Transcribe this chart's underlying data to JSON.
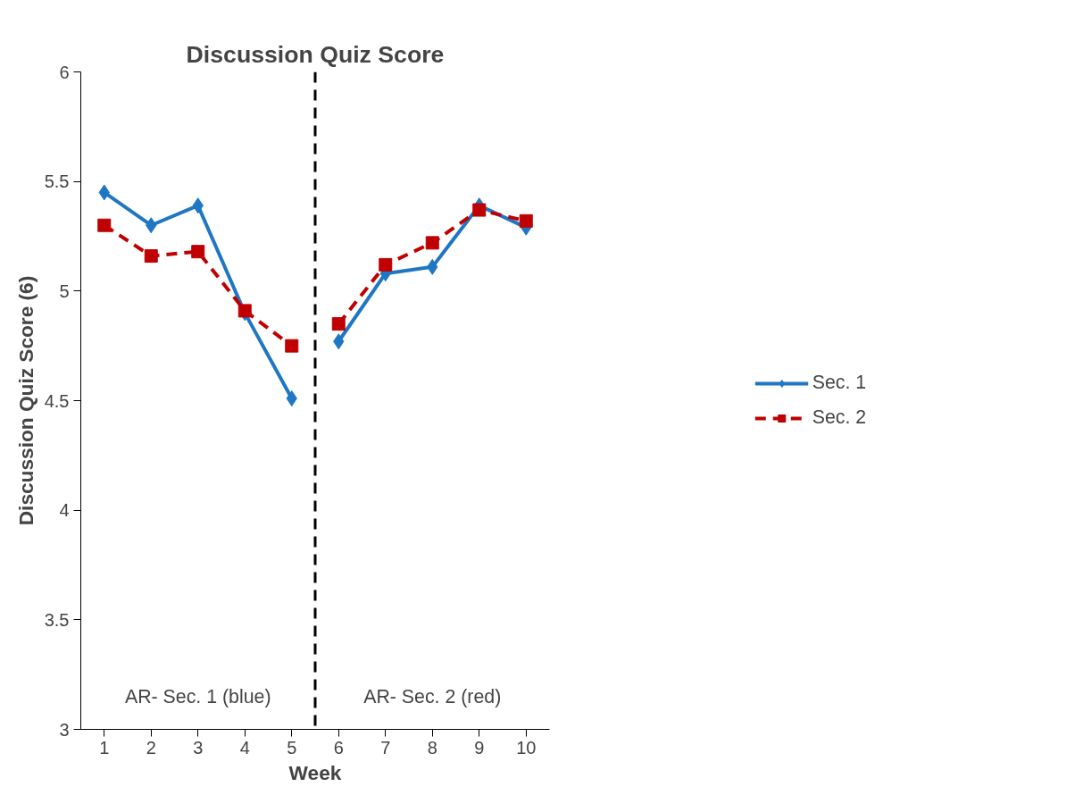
{
  "chart_data": {
    "type": "line",
    "title": "Discussion Quiz Score",
    "xlabel": "Week",
    "ylabel": "Discussion Quiz Score (6)",
    "x": [
      1,
      2,
      3,
      4,
      5,
      6,
      7,
      8,
      9,
      10
    ],
    "xlim": [
      0.5,
      10.5
    ],
    "xticks": [
      1,
      2,
      3,
      4,
      5,
      6,
      7,
      8,
      9,
      10
    ],
    "ylim": [
      3,
      6
    ],
    "yticks": [
      3,
      3.5,
      4,
      4.5,
      5,
      5.5,
      6
    ],
    "grid": false,
    "legend": "right",
    "series": [
      {
        "name": "Sec. 1",
        "color": "#1f77c4",
        "marker": "diamond",
        "line_style": "solid",
        "values": [
          5.45,
          5.3,
          5.39,
          4.9,
          4.51,
          4.77,
          5.08,
          5.11,
          5.39,
          5.29
        ]
      },
      {
        "name": "Sec. 2",
        "color": "#c00000",
        "marker": "square",
        "line_style": "dashed",
        "values": [
          5.3,
          5.16,
          5.18,
          4.91,
          4.75,
          4.85,
          5.12,
          5.22,
          5.37,
          5.32
        ]
      }
    ],
    "ref_lines": [
      {
        "axis": "x",
        "value": 5.5,
        "color": "#000000",
        "line_style": "dashed"
      }
    ],
    "annotations": [
      "AR- Sec. 1 (blue)",
      "AR- Sec. 2 (red)"
    ]
  }
}
